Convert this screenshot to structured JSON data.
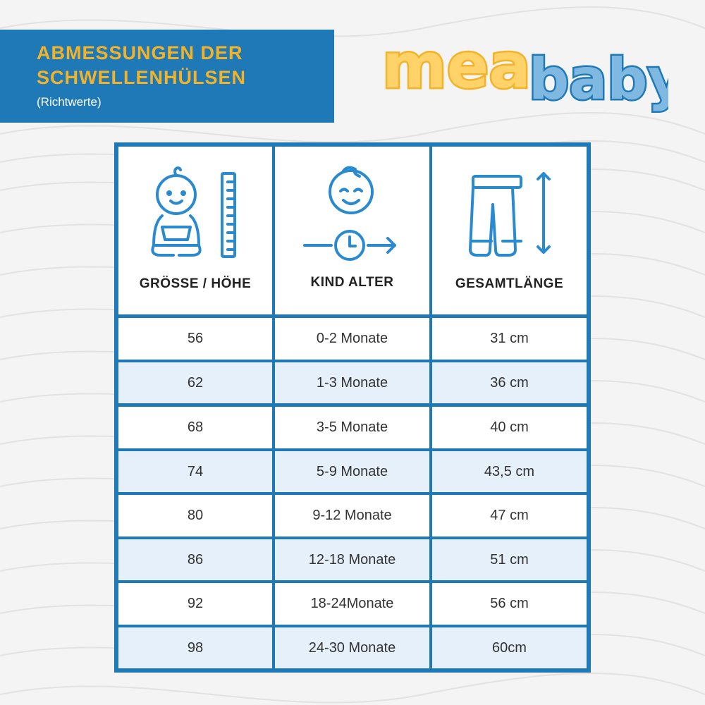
{
  "header": {
    "title_line1": "ABMESSUNGEN DER",
    "title_line2": "SCHWELLENHÜLSEN",
    "subtitle": "(Richtwerte)"
  },
  "logo": {
    "word1": "mea",
    "word2": "baby",
    "word1_color": "#f4b327",
    "word2_color": "#1f79b7"
  },
  "table": {
    "columns": [
      {
        "label": "GRÖSSE / HÖHE",
        "icon": "baby-height-icon"
      },
      {
        "label": "KIND ALTER",
        "icon": "child-age-icon"
      },
      {
        "label": "GESAMTLÄNGE",
        "icon": "leggings-length-icon"
      }
    ],
    "rows": [
      [
        "56",
        "0-2 Monate",
        "31 cm"
      ],
      [
        "62",
        "1-3 Monate",
        "36 cm"
      ],
      [
        "68",
        "3-5 Monate",
        "40 cm"
      ],
      [
        "74",
        "5-9 Monate",
        "43,5 cm"
      ],
      [
        "80",
        "9-12 Monate",
        "47 cm"
      ],
      [
        "86",
        "12-18 Monate",
        "51 cm"
      ],
      [
        "92",
        "18-24Monate",
        "56 cm"
      ],
      [
        "98",
        "24-30 Monate",
        "60cm"
      ]
    ]
  },
  "colors": {
    "brand_blue": "#1f79b7",
    "brand_yellow": "#f4b327",
    "row_tint": "#e6f0fa",
    "icon_blue": "#2a8ad0"
  }
}
